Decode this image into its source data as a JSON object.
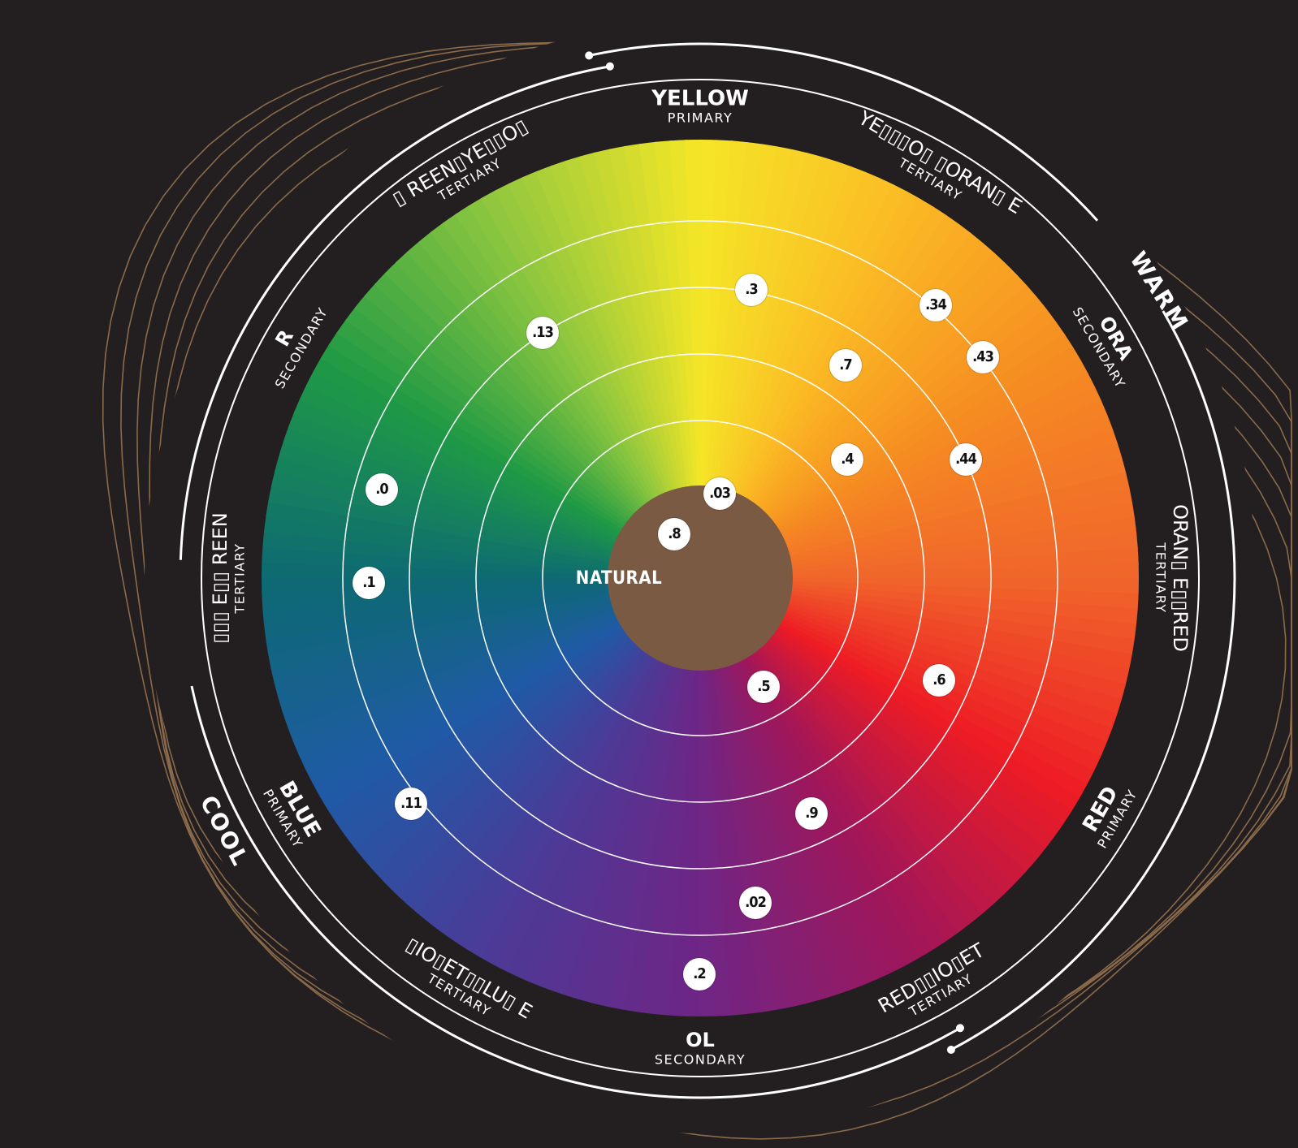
{
  "center": {
    "label": "NATURAL",
    "color": "#7a5a42"
  },
  "colors": {
    "background": "#231f20",
    "ring_line": "#ffffff",
    "wave_line": "#8a6a4a",
    "tertiary_text": "#bdbdbd"
  },
  "temperature": {
    "warm": "WARM",
    "cool": "COOL"
  },
  "segments": [
    {
      "name": "YELLOW",
      "role": "PRIMARY"
    },
    {
      "name": "YE▯▯▯O▯ ▯ORAN▯ E",
      "role": "TERTIARY"
    },
    {
      "name": "ORA",
      "role": "SECONDARY"
    },
    {
      "name": "ORAN▯ E▯▯RED",
      "role": "TERTIARY"
    },
    {
      "name": "RED",
      "role": "PRIMARY"
    },
    {
      "name": "RED▯▯IO▯ET",
      "role": "TERTIARY"
    },
    {
      "name": "OL",
      "role": "SECONDARY"
    },
    {
      "name": "▯IO▯ET▯▯LU▯ E",
      "role": "TERTIARY"
    },
    {
      "name": "BLUE",
      "role": "PRIMARY"
    },
    {
      "name": "▯▯▯ E▯▯ REEN",
      "role": "TERTIARY"
    },
    {
      "name": "R",
      "role": "SECONDARY"
    },
    {
      "name": "▯ REEN▯YE▯▯O▯",
      "role": "TERTIARY"
    }
  ],
  "markers": [
    ".3",
    ".34",
    ".13",
    ".43",
    ".7",
    ".44",
    ".4",
    ".03",
    ".8",
    ".0",
    ".1",
    ".5",
    ".6",
    ".9",
    ".11",
    ".02",
    ".2"
  ]
}
